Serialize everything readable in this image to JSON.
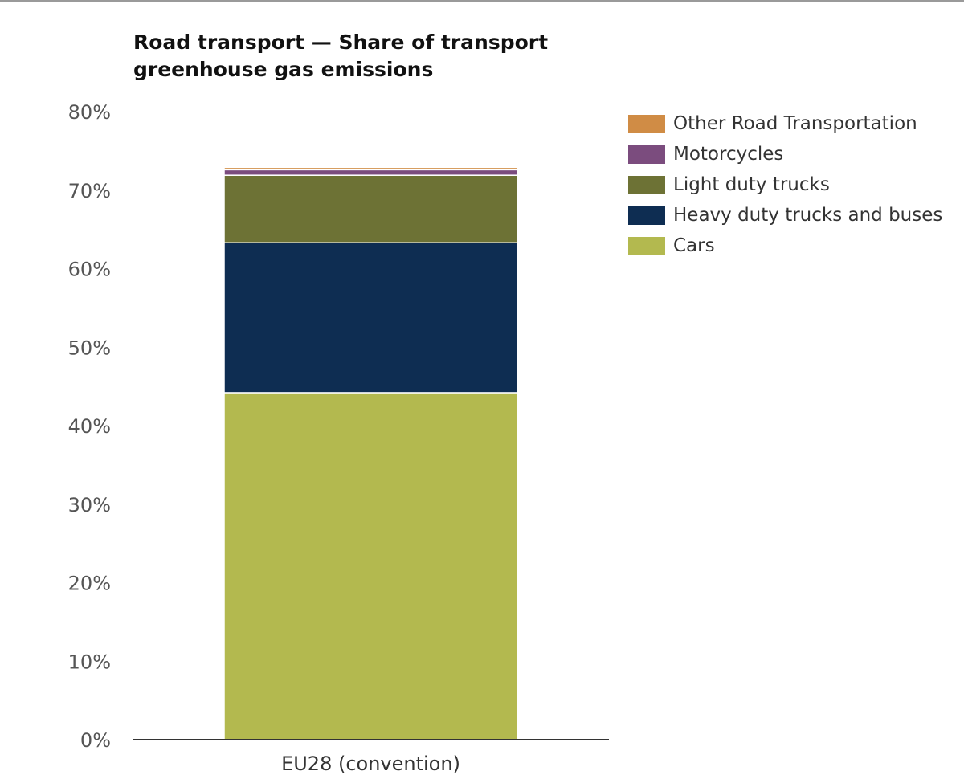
{
  "chart_data": {
    "type": "bar",
    "stacked": true,
    "title": "Road transport — Share of transport greenhouse gas emissions",
    "categories": [
      "EU28 (convention)"
    ],
    "series": [
      {
        "name": "Cars",
        "values": [
          44.2
        ],
        "color": "#b3b94f"
      },
      {
        "name": "Heavy duty trucks and buses",
        "values": [
          19.1
        ],
        "color": "#0e2d52"
      },
      {
        "name": "Light duty trucks",
        "values": [
          8.6
        ],
        "color": "#6d7235"
      },
      {
        "name": "Motorcycles",
        "values": [
          0.7
        ],
        "color": "#7b4c7e"
      },
      {
        "name": "Other Road Transportation",
        "values": [
          0.3
        ],
        "color": "#d08c45"
      }
    ],
    "ylim": [
      0,
      80
    ],
    "yticks": [
      0,
      10,
      20,
      30,
      40,
      50,
      60,
      70,
      80
    ],
    "ytick_labels": [
      "0%",
      "10%",
      "20%",
      "30%",
      "40%",
      "50%",
      "60%",
      "70%",
      "80%"
    ],
    "xlabel": "",
    "ylabel": "",
    "grid": false,
    "legend_position": "top-right",
    "legend": [
      {
        "label": "Other Road Transportation",
        "color": "#d08c45"
      },
      {
        "label": "Motorcycles",
        "color": "#7b4c7e"
      },
      {
        "label": "Light duty trucks",
        "color": "#6d7235"
      },
      {
        "label": "Heavy duty trucks and buses",
        "color": "#0e2d52"
      },
      {
        "label": "Cars",
        "color": "#b3b94f"
      }
    ]
  }
}
